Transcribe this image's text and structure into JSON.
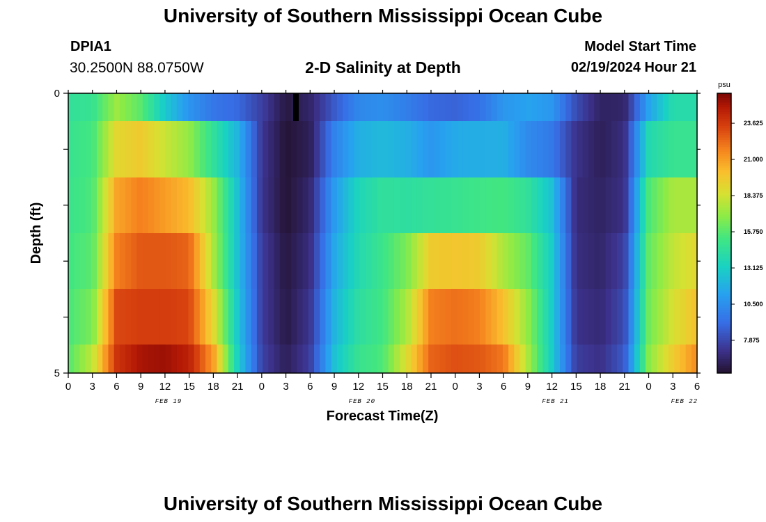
{
  "header": {
    "title": "University of Southern Mississippi Ocean Cube",
    "station": "DPIA1",
    "coords": "30.2500N  88.0750W",
    "subtitle": "2-D Salinity at Depth",
    "model_start_label": "Model Start Time",
    "model_start_value": "02/19/2024 Hour 21"
  },
  "footer": {
    "title": "University of Southern Mississippi Ocean Cube"
  },
  "chart_data": {
    "type": "heatmap",
    "title": "2-D Salinity at Depth",
    "xlabel": "Forecast Time(Z)",
    "ylabel": "Depth (ft)",
    "y_tick_labels": [
      "0",
      "5"
    ],
    "ylim": [
      0,
      5
    ],
    "x_tick_labels": [
      "0",
      "3",
      "6",
      "9",
      "12",
      "15",
      "18",
      "21",
      "0",
      "3",
      "6",
      "9",
      "12",
      "15",
      "18",
      "21",
      "0",
      "3",
      "6",
      "9",
      "12",
      "15",
      "18",
      "21",
      "0",
      "3",
      "6"
    ],
    "date_labels": [
      "FEB 19",
      "FEB 20",
      "FEB 21",
      "FEB 22"
    ],
    "colorbar": {
      "unit": "psu",
      "tick_labels": [
        "7.875",
        "10.500",
        "13.125",
        "15.750",
        "18.375",
        "21.000",
        "23.625"
      ],
      "tick_values": [
        7.875,
        10.5,
        13.125,
        15.75,
        18.375,
        21.0,
        23.625
      ],
      "min": 5.5,
      "max": 25.8
    },
    "hours": [
      0,
      3,
      6,
      9,
      12,
      15,
      18,
      21,
      24,
      27,
      30,
      33,
      36,
      39,
      42,
      45,
      48,
      51,
      54,
      57,
      60,
      63,
      66,
      69,
      72,
      75,
      78
    ],
    "depth_levels": [
      0,
      1,
      2,
      3,
      4,
      5
    ],
    "salinity_rows": [
      [
        14.5,
        14.8,
        17.2,
        15.8,
        12.8,
        10.7,
        9.5,
        9.0,
        7.6,
        5.8,
        6.5,
        8.5,
        10.2,
        10.5,
        9.8,
        9.0,
        8.8,
        9.3,
        10.8,
        11.3,
        10.8,
        8.0,
        6.4,
        6.5,
        11.3,
        14.0,
        14.0
      ],
      [
        14.8,
        15.3,
        19.0,
        19.6,
        18.2,
        17.0,
        14.5,
        12.0,
        7.3,
        5.6,
        6.2,
        10.0,
        11.8,
        12.2,
        11.8,
        10.8,
        11.6,
        11.7,
        11.8,
        10.3,
        9.6,
        7.1,
        6.2,
        6.9,
        13.8,
        14.8,
        14.8
      ],
      [
        14.9,
        15.5,
        20.8,
        21.8,
        21.0,
        20.2,
        17.2,
        12.5,
        7.2,
        5.6,
        6.6,
        11.0,
        13.5,
        14.5,
        14.3,
        14.6,
        14.8,
        15.1,
        15.3,
        14.5,
        12.5,
        6.8,
        6.4,
        7.0,
        15.5,
        17.5,
        17.5
      ],
      [
        15.2,
        15.8,
        21.8,
        22.8,
        22.8,
        22.5,
        17.5,
        12.5,
        7.5,
        5.8,
        6.9,
        11.5,
        13.8,
        15.0,
        16.5,
        19.5,
        19.8,
        19.5,
        17.5,
        16.0,
        13.0,
        6.9,
        6.5,
        7.6,
        16.0,
        18.0,
        19.0
      ],
      [
        15.4,
        16.5,
        23.2,
        23.5,
        23.5,
        23.3,
        19.0,
        12.8,
        7.5,
        5.9,
        7.2,
        12.0,
        14.3,
        15.2,
        17.5,
        21.8,
        22.2,
        21.8,
        20.0,
        17.0,
        13.0,
        7.1,
        6.7,
        8.0,
        16.3,
        18.5,
        20.0
      ],
      [
        15.6,
        18.0,
        23.8,
        25.0,
        25.2,
        24.5,
        21.0,
        13.2,
        7.7,
        6.2,
        7.5,
        12.5,
        14.8,
        15.5,
        18.8,
        22.5,
        23.0,
        22.8,
        22.0,
        17.5,
        13.0,
        7.5,
        7.0,
        8.5,
        16.8,
        19.5,
        21.5
      ]
    ]
  }
}
